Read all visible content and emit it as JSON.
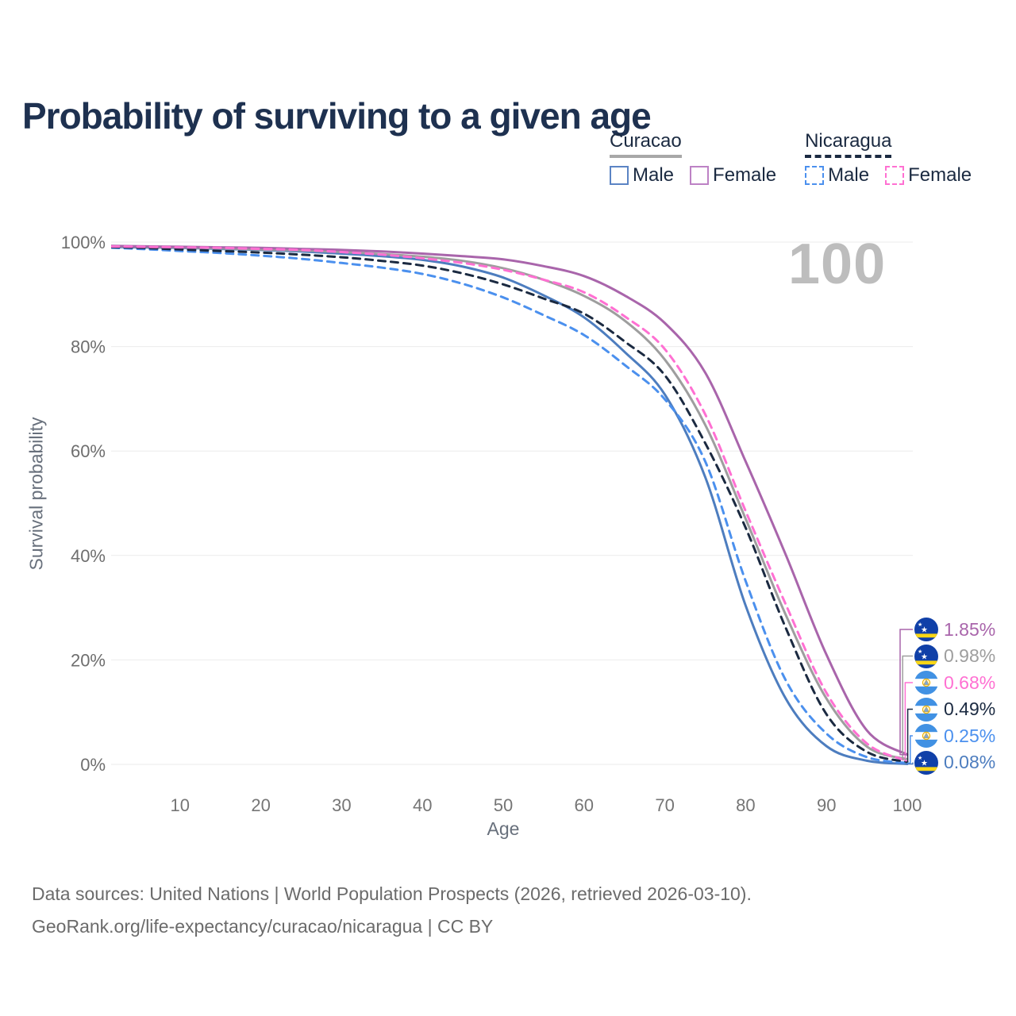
{
  "title": "Probability of surviving to a given age",
  "watermark_age": "100",
  "legend": {
    "groups": [
      {
        "name": "Curacao",
        "line_style": "solid",
        "underline_color": "#a8a8a8",
        "items": [
          {
            "label": "Male",
            "color": "#5b84c4"
          },
          {
            "label": "Female",
            "color": "#bd82c5"
          }
        ]
      },
      {
        "name": "Nicaragua",
        "line_style": "dashed",
        "underline_color": "#1b2a41",
        "items": [
          {
            "label": "Male",
            "color": "#4b90ee"
          },
          {
            "label": "Female",
            "color": "#ff70d2"
          }
        ]
      }
    ]
  },
  "chart_data": {
    "type": "line",
    "title": "Probability of surviving to a given age",
    "xlabel": "Age",
    "ylabel": "Survival probability",
    "xlim": [
      0,
      100
    ],
    "ylim": [
      0,
      100
    ],
    "grid": "horizontal",
    "legend_position": "top-right",
    "x_ticks": [
      10,
      20,
      30,
      40,
      50,
      60,
      70,
      80,
      90,
      100
    ],
    "y_ticks": [
      {
        "value": 100,
        "label": "100%"
      },
      {
        "value": 80,
        "label": "80%"
      },
      {
        "value": 60,
        "label": "60%"
      },
      {
        "value": 40,
        "label": "40%"
      },
      {
        "value": 20,
        "label": "20%"
      },
      {
        "value": 0,
        "label": "0%"
      }
    ],
    "x": [
      0,
      5,
      10,
      15,
      20,
      25,
      30,
      35,
      40,
      45,
      50,
      55,
      60,
      65,
      70,
      75,
      80,
      85,
      90,
      95,
      100
    ],
    "series": [
      {
        "id": "curacao-male",
        "name": "Curacao Male",
        "country": "curacao",
        "color": "#4d7dbf",
        "dash": "solid",
        "end_label": "0.08%",
        "values": [
          99.1,
          99.0,
          98.9,
          98.7,
          98.5,
          98.2,
          97.8,
          97.3,
          96.6,
          95.3,
          93.2,
          89.8,
          85.6,
          79.0,
          70.8,
          55.0,
          30.4,
          12.5,
          3.5,
          0.7,
          0.08
        ]
      },
      {
        "id": "curacao-total",
        "name": "Curacao",
        "country": "curacao",
        "color": "#9e9e9e",
        "dash": "solid",
        "end_label": "0.98%",
        "values": [
          99.2,
          99.1,
          99.0,
          98.8,
          98.6,
          98.4,
          98.1,
          97.7,
          97.2,
          96.4,
          95.0,
          92.8,
          89.7,
          85.0,
          77.5,
          65.0,
          47.0,
          28.5,
          12.6,
          3.4,
          0.98
        ]
      },
      {
        "id": "curacao-female",
        "name": "Curacao Female",
        "country": "curacao",
        "color": "#a965ab",
        "dash": "solid",
        "end_label": "1.85%",
        "values": [
          99.3,
          99.2,
          99.1,
          99.0,
          98.9,
          98.7,
          98.5,
          98.2,
          97.8,
          97.3,
          96.7,
          95.4,
          93.5,
          89.8,
          84.5,
          75.0,
          58.0,
          40.0,
          21.0,
          6.5,
          1.85
        ]
      },
      {
        "id": "nicaragua-male",
        "name": "Nicaragua Male",
        "country": "nicaragua",
        "color": "#4b90ee",
        "dash": "dashed",
        "end_label": "0.25%",
        "values": [
          99.0,
          98.7,
          98.3,
          97.9,
          97.4,
          96.8,
          96.0,
          95.1,
          93.9,
          92.0,
          89.4,
          86.0,
          82.2,
          76.5,
          69.9,
          58.0,
          35.1,
          16.0,
          5.9,
          1.4,
          0.25
        ]
      },
      {
        "id": "nicaragua-total",
        "name": "Nicaragua",
        "country": "nicaragua",
        "color": "#1b2a41",
        "dash": "dashed",
        "end_label": "0.49%",
        "values": [
          99.1,
          98.9,
          98.6,
          98.3,
          98.0,
          97.6,
          97.1,
          96.4,
          95.5,
          94.0,
          91.9,
          89.2,
          86.3,
          81.0,
          74.5,
          61.5,
          45.3,
          26.0,
          9.6,
          2.4,
          0.49
        ]
      },
      {
        "id": "nicaragua-female",
        "name": "Nicaragua Female",
        "country": "nicaragua",
        "color": "#ff70d2",
        "dash": "dashed",
        "end_label": "0.68%",
        "values": [
          99.2,
          99.1,
          99.0,
          98.9,
          98.7,
          98.5,
          98.1,
          97.6,
          96.9,
          96.0,
          94.7,
          92.8,
          90.4,
          85.8,
          79.5,
          67.0,
          48.5,
          30.5,
          13.7,
          4.0,
          0.68
        ]
      }
    ]
  },
  "footer": {
    "line1": "Data sources: United Nations | World Population Prospects (2026, retrieved 2026-03-10).",
    "line2": "GeoRank.org/life-expectancy/curacao/nicaragua | CC BY"
  }
}
